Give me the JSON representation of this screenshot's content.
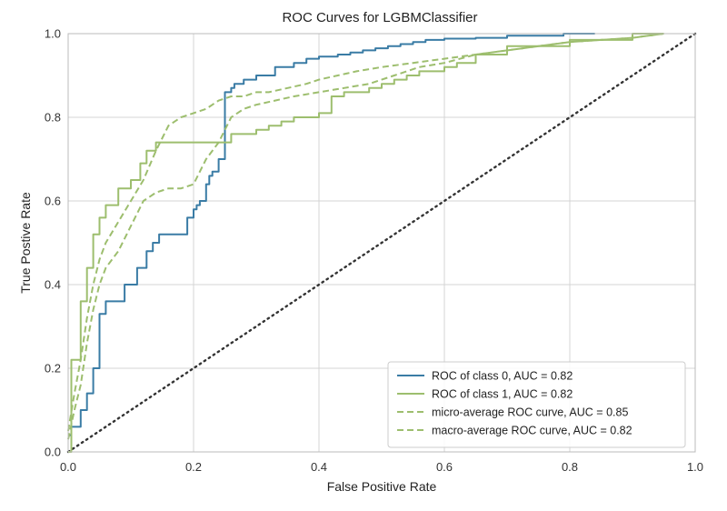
{
  "chart_data": {
    "type": "line",
    "title": "ROC Curves for LGBMClassifier",
    "xlabel": "False Positive Rate",
    "ylabel": "True Postive Rate",
    "xlim": [
      0.0,
      1.0
    ],
    "ylim": [
      0.0,
      1.0
    ],
    "xticks": [
      "0.0",
      "0.2",
      "0.4",
      "0.6",
      "0.8",
      "1.0"
    ],
    "yticks": [
      "0.0",
      "0.2",
      "0.4",
      "0.6",
      "0.8",
      "1.0"
    ],
    "grid": true,
    "legend_position": "lower-right",
    "series": [
      {
        "name": "ROC of class 0, AUC = 0.82",
        "color": "#3a7ca5",
        "dash": "solid",
        "x": [
          0.0,
          0.005,
          0.005,
          0.02,
          0.02,
          0.03,
          0.03,
          0.04,
          0.04,
          0.05,
          0.05,
          0.06,
          0.06,
          0.09,
          0.09,
          0.11,
          0.11,
          0.125,
          0.125,
          0.135,
          0.135,
          0.145,
          0.145,
          0.19,
          0.19,
          0.2,
          0.2,
          0.205,
          0.205,
          0.21,
          0.21,
          0.22,
          0.22,
          0.225,
          0.225,
          0.23,
          0.23,
          0.24,
          0.24,
          0.25,
          0.25,
          0.26,
          0.26,
          0.265,
          0.265,
          0.28,
          0.28,
          0.3,
          0.3,
          0.33,
          0.33,
          0.36,
          0.36,
          0.38,
          0.38,
          0.4,
          0.4,
          0.43,
          0.43,
          0.45,
          0.45,
          0.47,
          0.47,
          0.49,
          0.49,
          0.51,
          0.51,
          0.53,
          0.53,
          0.55,
          0.55,
          0.57,
          0.57,
          0.6,
          0.6,
          0.65,
          0.65,
          0.7,
          0.7,
          0.79,
          0.79,
          0.84
        ],
        "y": [
          0.04,
          0.04,
          0.06,
          0.06,
          0.1,
          0.1,
          0.14,
          0.14,
          0.2,
          0.2,
          0.33,
          0.33,
          0.36,
          0.36,
          0.4,
          0.4,
          0.44,
          0.44,
          0.48,
          0.48,
          0.5,
          0.5,
          0.52,
          0.52,
          0.56,
          0.56,
          0.58,
          0.58,
          0.59,
          0.59,
          0.6,
          0.6,
          0.64,
          0.64,
          0.66,
          0.66,
          0.67,
          0.67,
          0.7,
          0.7,
          0.86,
          0.86,
          0.87,
          0.87,
          0.88,
          0.88,
          0.89,
          0.89,
          0.9,
          0.9,
          0.92,
          0.92,
          0.93,
          0.93,
          0.94,
          0.94,
          0.945,
          0.945,
          0.95,
          0.95,
          0.955,
          0.955,
          0.96,
          0.96,
          0.965,
          0.965,
          0.97,
          0.97,
          0.975,
          0.975,
          0.98,
          0.98,
          0.985,
          0.985,
          0.988,
          0.988,
          0.99,
          0.99,
          0.995,
          0.995,
          1.0,
          1.0
        ]
      },
      {
        "name": "ROC of class 1, AUC = 0.82",
        "color": "#9dbe6e",
        "dash": "solid",
        "x": [
          0.0,
          0.005,
          0.005,
          0.02,
          0.02,
          0.03,
          0.03,
          0.04,
          0.04,
          0.05,
          0.05,
          0.06,
          0.06,
          0.08,
          0.08,
          0.1,
          0.1,
          0.115,
          0.115,
          0.125,
          0.125,
          0.14,
          0.14,
          0.16,
          0.16,
          0.26,
          0.26,
          0.3,
          0.3,
          0.32,
          0.32,
          0.34,
          0.34,
          0.36,
          0.36,
          0.4,
          0.4,
          0.42,
          0.42,
          0.44,
          0.44,
          0.48,
          0.48,
          0.5,
          0.5,
          0.52,
          0.52,
          0.54,
          0.54,
          0.56,
          0.56,
          0.6,
          0.6,
          0.62,
          0.62,
          0.65,
          0.65,
          0.7,
          0.7,
          0.8,
          0.8,
          0.9,
          0.9,
          0.95
        ],
        "y": [
          0.0,
          0.0,
          0.22,
          0.22,
          0.36,
          0.36,
          0.44,
          0.44,
          0.52,
          0.52,
          0.56,
          0.56,
          0.59,
          0.59,
          0.63,
          0.63,
          0.65,
          0.65,
          0.69,
          0.69,
          0.72,
          0.72,
          0.74,
          0.74,
          0.74,
          0.74,
          0.76,
          0.76,
          0.77,
          0.77,
          0.78,
          0.78,
          0.79,
          0.79,
          0.8,
          0.8,
          0.81,
          0.81,
          0.85,
          0.85,
          0.86,
          0.86,
          0.87,
          0.87,
          0.88,
          0.88,
          0.89,
          0.89,
          0.9,
          0.9,
          0.91,
          0.91,
          0.92,
          0.92,
          0.93,
          0.93,
          0.95,
          0.95,
          0.97,
          0.97,
          0.985,
          0.985,
          1.0,
          1.0
        ]
      },
      {
        "name": "micro-average ROC curve, AUC = 0.85",
        "color": "#9dbe6e",
        "dash": "dashed",
        "x": [
          0.0,
          0.01,
          0.02,
          0.03,
          0.04,
          0.05,
          0.06,
          0.08,
          0.1,
          0.12,
          0.14,
          0.16,
          0.18,
          0.2,
          0.22,
          0.24,
          0.26,
          0.28,
          0.3,
          0.32,
          0.35,
          0.38,
          0.4,
          0.43,
          0.46,
          0.5,
          0.55,
          0.6,
          0.65,
          0.7,
          0.75,
          0.8,
          0.85,
          0.9,
          0.95
        ],
        "y": [
          0.05,
          0.14,
          0.22,
          0.32,
          0.4,
          0.46,
          0.5,
          0.55,
          0.6,
          0.65,
          0.72,
          0.78,
          0.8,
          0.81,
          0.82,
          0.84,
          0.85,
          0.85,
          0.86,
          0.86,
          0.87,
          0.88,
          0.89,
          0.9,
          0.91,
          0.92,
          0.93,
          0.94,
          0.95,
          0.96,
          0.97,
          0.98,
          0.985,
          0.99,
          1.0
        ]
      },
      {
        "name": "macro-average ROC curve, AUC = 0.82",
        "color": "#9dbe6e",
        "dash": "dashed",
        "x": [
          0.0,
          0.01,
          0.02,
          0.03,
          0.04,
          0.05,
          0.06,
          0.08,
          0.1,
          0.12,
          0.14,
          0.16,
          0.18,
          0.2,
          0.22,
          0.24,
          0.26,
          0.28,
          0.3,
          0.33,
          0.36,
          0.4,
          0.44,
          0.48,
          0.52,
          0.56,
          0.6,
          0.65,
          0.7,
          0.75,
          0.8,
          0.85,
          0.9,
          0.95
        ],
        "y": [
          0.03,
          0.1,
          0.16,
          0.26,
          0.34,
          0.4,
          0.44,
          0.48,
          0.54,
          0.6,
          0.62,
          0.63,
          0.63,
          0.64,
          0.7,
          0.74,
          0.8,
          0.82,
          0.83,
          0.84,
          0.85,
          0.86,
          0.87,
          0.88,
          0.9,
          0.92,
          0.93,
          0.95,
          0.96,
          0.97,
          0.98,
          0.985,
          0.99,
          1.0
        ]
      }
    ],
    "reference_line": {
      "x": [
        0.0,
        1.0
      ],
      "y": [
        0.0,
        1.0
      ],
      "color": "#333333",
      "dash": "dotted"
    },
    "colors": {
      "plot_border": "#bbbbbb",
      "grid": "#d4d4d4",
      "legend_border": "#cccccc"
    }
  }
}
